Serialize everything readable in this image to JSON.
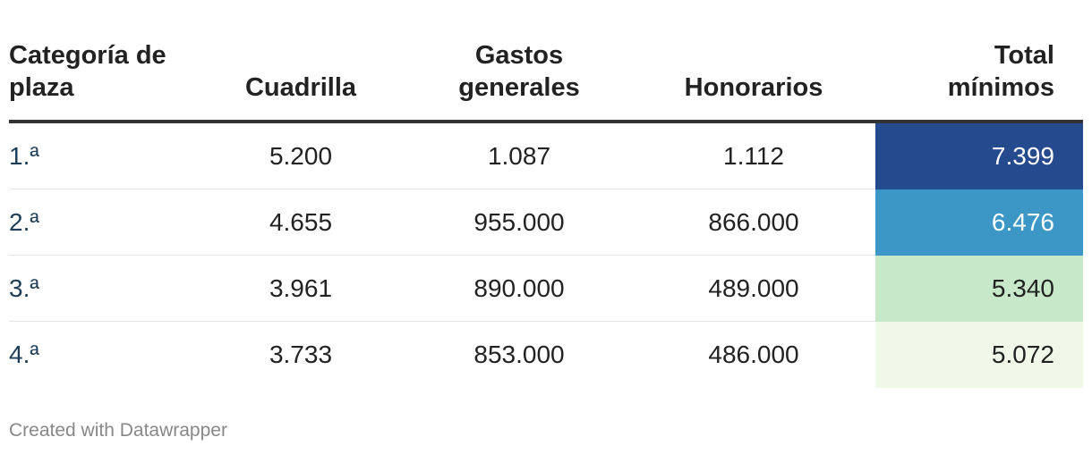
{
  "chart_data": {
    "type": "table",
    "columns": [
      "Categoría de plaza",
      "Cuadrilla",
      "Gastos generales",
      "Honorarios",
      "Total mínimos"
    ],
    "rows": [
      {
        "categoria": "1.ª",
        "cuadrilla": "5.200",
        "gastos": "1.087",
        "honorarios": "1.112",
        "total": "7.399",
        "bg": "#264a8e",
        "fg": "#ffffff"
      },
      {
        "categoria": "2.ª",
        "cuadrilla": "4.655",
        "gastos": "955.000",
        "honorarios": "866.000",
        "total": "6.476",
        "bg": "#3c96c6",
        "fg": "#ffffff"
      },
      {
        "categoria": "3.ª",
        "cuadrilla": "3.961",
        "gastos": "890.000",
        "honorarios": "489.000",
        "total": "5.340",
        "bg": "#c8e8ca",
        "fg": "#222222"
      },
      {
        "categoria": "4.ª",
        "cuadrilla": "3.733",
        "gastos": "853.000",
        "honorarios": "486.000",
        "total": "5.072",
        "bg": "#eff8e9",
        "fg": "#222222"
      }
    ]
  },
  "header": {
    "col1_line1": "Categoría de",
    "col1_line2": "plaza",
    "col2": "Cuadrilla",
    "col3_line1": "Gastos",
    "col3_line2": "generales",
    "col4": "Honorarios",
    "col5_line1": "Total",
    "col5_line2": "mínimos"
  },
  "footer": {
    "credit": "Created with Datawrapper"
  }
}
